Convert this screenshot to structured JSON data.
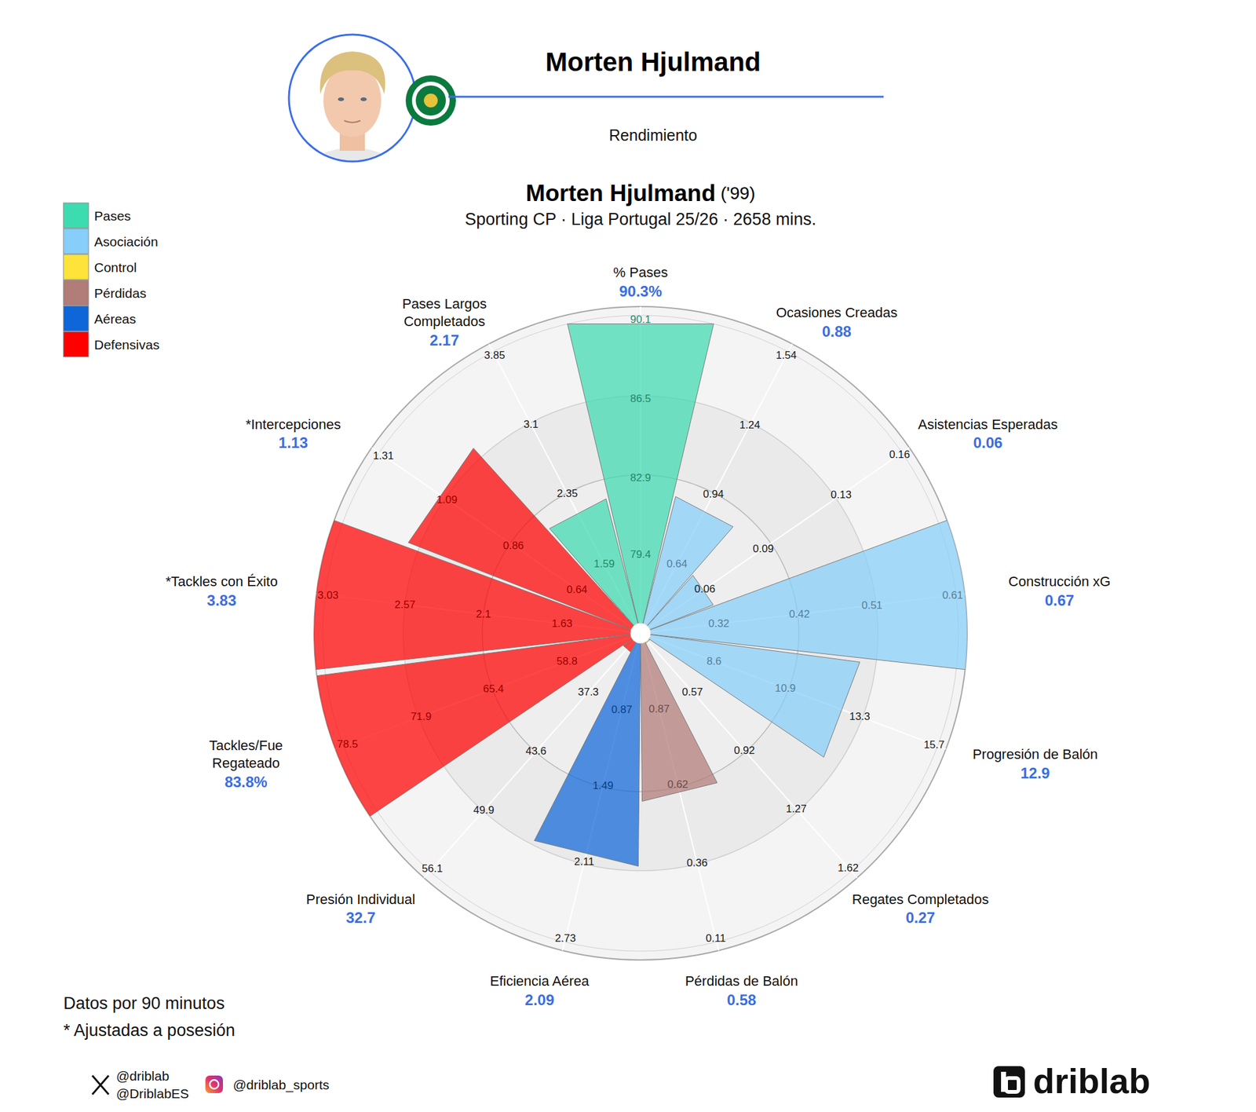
{
  "header": {
    "title": "Morten Hjulmand",
    "subtitle": "Rendimiento"
  },
  "chart_data": {
    "type": "polar_bar",
    "title": "Morten Hjulmand",
    "title_suffix": "('99)",
    "subtitle": "Sporting CP · Liga Portugal 25/26 · 2658 mins.",
    "categories": [
      "% Pases",
      "Ocasiones Creadas",
      "Asistencias Esperadas",
      "Construcción xG",
      "Progresión de Balón",
      "Regates Completados",
      "Pérdidas de Balón",
      "Eficiencia Aérea",
      "Presión Individual",
      "Tackles/Fue Regateado",
      "*Tackles con Éxito",
      "*Intercepciones",
      "Pases Largos Completados"
    ],
    "values": [
      90.3,
      0.88,
      0.06,
      0.67,
      12.9,
      0.27,
      0.58,
      2.09,
      32.7,
      83.8,
      3.83,
      1.13,
      2.17
    ],
    "value_labels": [
      "90.3%",
      "0.88",
      "0.06",
      "0.67",
      "12.9",
      "0.27",
      "0.58",
      "2.09",
      "32.7",
      "83.8%",
      "3.83",
      "1.13",
      "2.17"
    ],
    "category_groups": [
      "Pases",
      "Asociación",
      "Asociación",
      "Asociación",
      "Asociación",
      "Control",
      "Pérdidas",
      "Aéreas",
      "Defensivas",
      "Defensivas",
      "Defensivas",
      "Defensivas",
      "Pases"
    ],
    "groups": [
      {
        "name": "Pases",
        "color": "#3ddbb0"
      },
      {
        "name": "Asociación",
        "color": "#87cefa"
      },
      {
        "name": "Control",
        "color": "#fde33a"
      },
      {
        "name": "Pérdidas",
        "color": "#b27c78"
      },
      {
        "name": "Aéreas",
        "color": "#0f66d8"
      },
      {
        "name": "Defensivas",
        "color": "#ff0000"
      }
    ],
    "axes": [
      {
        "lim": [
          75.8,
          90.7
        ],
        "ticks": [
          79.4,
          82.9,
          86.5,
          90.1
        ]
      },
      {
        "lim": [
          0.34,
          1.59
        ],
        "ticks": [
          0.64,
          0.94,
          1.24,
          1.54
        ]
      },
      {
        "lim": [
          0.027,
          0.165
        ],
        "ticks": [
          0.06,
          0.09,
          0.13,
          0.16
        ]
      },
      {
        "lim": [
          0.223,
          0.625
        ],
        "ticks": [
          0.32,
          0.42,
          0.51,
          0.61
        ]
      },
      {
        "lim": [
          6.23,
          16.08
        ],
        "ticks": [
          8.6,
          10.9,
          13.3,
          15.7
        ]
      },
      {
        "lim": [
          0.22,
          1.68
        ],
        "ticks": [
          0.57,
          0.92,
          1.27,
          1.62
        ]
      },
      {
        "lim": [
          1.12,
          0.07
        ],
        "ticks": [
          0.87,
          0.62,
          0.36,
          0.11
        ]
      },
      {
        "lim": [
          0.25,
          2.83
        ],
        "ticks": [
          0.87,
          1.49,
          2.11,
          2.73
        ]
      },
      {
        "lim": [
          31,
          57.1
        ],
        "ticks": [
          37.3,
          43.6,
          49.9,
          56.1
        ]
      },
      {
        "lim": [
          52.2,
          79.6
        ],
        "ticks": [
          58.8,
          65.4,
          71.9,
          78.5
        ]
      },
      {
        "lim": [
          1.16,
          3.1
        ],
        "ticks": [
          1.63,
          2.1,
          2.57,
          3.03
        ]
      },
      {
        "lim": [
          0.42,
          1.35
        ],
        "ticks": [
          0.64,
          0.86,
          1.09,
          1.31
        ]
      },
      {
        "lim": [
          0.84,
          3.97
        ],
        "ticks": [
          1.59,
          2.35,
          3.1,
          3.85
        ]
      }
    ],
    "legend": "upper left",
    "data_labels": true,
    "grid": true
  },
  "notes": [
    "Datos por 90 minutos",
    "* Ajustadas a posesión"
  ],
  "footer": {
    "x_handles": [
      "@driblab",
      "@DriblabES"
    ],
    "instagram": "@driblab_sports",
    "brand": "driblab"
  }
}
